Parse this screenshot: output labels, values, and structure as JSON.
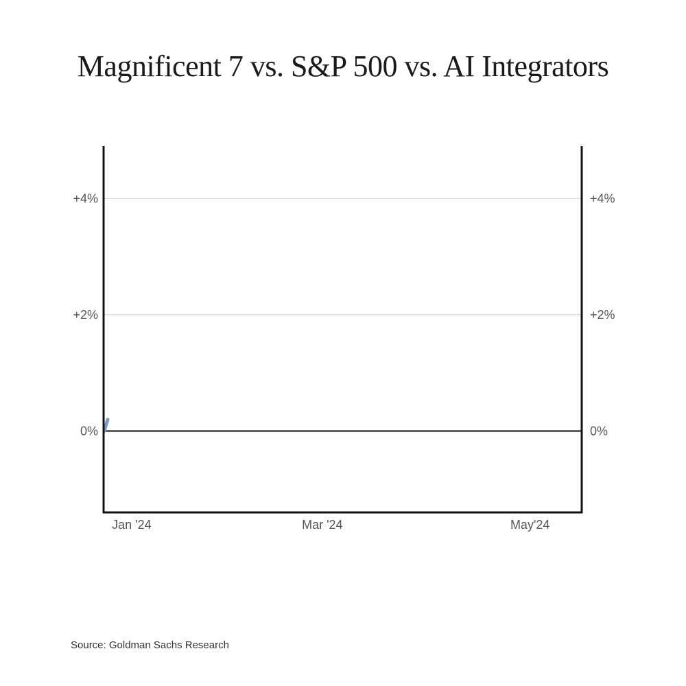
{
  "title": "Magnificent 7 vs. S&P 500 vs. AI Integrators",
  "source": "Source: Goldman Sachs Research",
  "chart_data": {
    "type": "line",
    "title": "Magnificent 7 vs. S&P 500 vs. AI Integrators",
    "xlabel": "",
    "ylabel": "",
    "x_ticks": [
      {
        "date": "2024-01-05",
        "label": "Jan '24"
      },
      {
        "date": "2024-03-01",
        "label": "Mar '24"
      },
      {
        "date": "2024-05-01",
        "label": "May'24"
      }
    ],
    "x_range": [
      "2024-01-01",
      "2024-05-20"
    ],
    "y_ticks": [
      {
        "value": 0,
        "label": "0%"
      },
      {
        "value": 2,
        "label": "+2%"
      },
      {
        "value": 4,
        "label": "+4%"
      }
    ],
    "ylim": [
      -1.4,
      4.9
    ],
    "grid": true,
    "series": [
      {
        "name": "",
        "color": "#7f9cc6",
        "points": [
          {
            "x": "2024-01-01",
            "y": 0.0
          },
          {
            "x": "2024-01-02",
            "y": 0.2
          }
        ]
      }
    ]
  }
}
